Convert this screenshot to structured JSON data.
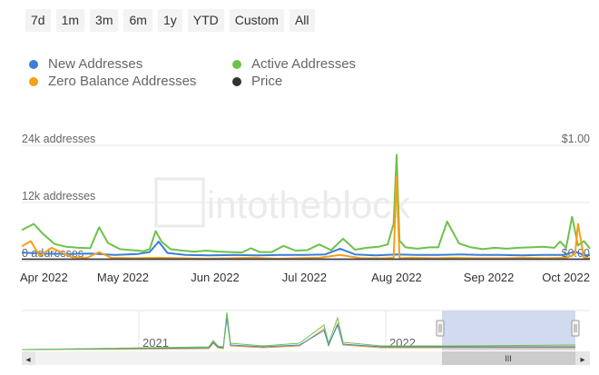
{
  "range_buttons": [
    "7d",
    "1m",
    "3m",
    "6m",
    "1y",
    "YTD",
    "Custom",
    "All"
  ],
  "colors": {
    "new": "#3a7fd5",
    "active": "#6cc24a",
    "zero": "#f5a01a",
    "price": "#333333",
    "grid": "#e6e6e6",
    "navigator_mask": "#c9d3ec"
  },
  "legend": {
    "new": "New Addresses",
    "active": "Active Addresses",
    "zero": "Zero Balance Addresses",
    "price": "Price"
  },
  "watermark": "intotheblock",
  "chart_data": {
    "type": "line",
    "x_ticks": [
      "Apr 2022",
      "May 2022",
      "Jun 2022",
      "Jul 2022",
      "Aug 2022",
      "Sep 2022",
      "Oct 2022"
    ],
    "y_left_labels": [
      "24k addresses",
      "12k addresses",
      "0 addresses"
    ],
    "y_right_labels": [
      "$1.00",
      "$0.00"
    ],
    "ylim": [
      0,
      24000
    ],
    "y_right_lim": [
      0,
      1
    ],
    "x_range": [
      "2022-03-28",
      "2022-10-05"
    ],
    "series": [
      {
        "name": "Active Addresses",
        "color_key": "active",
        "x": [
          "2022-03-28",
          "2022-04-01",
          "2022-04-04",
          "2022-04-08",
          "2022-04-12",
          "2022-04-16",
          "2022-04-20",
          "2022-04-23",
          "2022-04-26",
          "2022-04-30",
          "2022-05-04",
          "2022-05-08",
          "2022-05-10",
          "2022-05-12",
          "2022-05-14",
          "2022-05-17",
          "2022-05-21",
          "2022-05-25",
          "2022-05-29",
          "2022-06-02",
          "2022-06-06",
          "2022-06-10",
          "2022-06-13",
          "2022-06-16",
          "2022-06-20",
          "2022-06-24",
          "2022-06-28",
          "2022-07-02",
          "2022-07-06",
          "2022-07-10",
          "2022-07-14",
          "2022-07-18",
          "2022-07-22",
          "2022-07-26",
          "2022-07-29",
          "2022-07-31",
          "2022-08-01",
          "2022-08-02",
          "2022-08-04",
          "2022-08-08",
          "2022-08-12",
          "2022-08-15",
          "2022-08-18",
          "2022-08-22",
          "2022-08-26",
          "2022-08-30",
          "2022-09-03",
          "2022-09-07",
          "2022-09-11",
          "2022-09-15",
          "2022-09-19",
          "2022-09-23",
          "2022-09-25",
          "2022-09-27",
          "2022-09-29",
          "2022-10-01",
          "2022-10-03",
          "2022-10-05"
        ],
        "y": [
          6200,
          7500,
          5500,
          3300,
          2700,
          2500,
          2400,
          6800,
          3500,
          2200,
          2000,
          1800,
          2200,
          6000,
          3800,
          2200,
          1900,
          1700,
          1900,
          1700,
          1600,
          1500,
          2400,
          1600,
          1600,
          2900,
          1900,
          2000,
          3200,
          2000,
          4400,
          2100,
          2500,
          2700,
          3200,
          7500,
          22000,
          4000,
          2600,
          2300,
          2600,
          2600,
          8000,
          3400,
          2600,
          2200,
          2500,
          2300,
          2500,
          2600,
          2700,
          2500,
          3800,
          2500,
          9000,
          3000,
          3900,
          2300
        ]
      },
      {
        "name": "New Addresses",
        "color_key": "new",
        "x": [
          "2022-03-28",
          "2022-04-04",
          "2022-04-12",
          "2022-04-20",
          "2022-04-28",
          "2022-05-06",
          "2022-05-10",
          "2022-05-13",
          "2022-05-16",
          "2022-05-22",
          "2022-05-30",
          "2022-06-07",
          "2022-06-15",
          "2022-06-23",
          "2022-07-01",
          "2022-07-08",
          "2022-07-13",
          "2022-07-18",
          "2022-07-25",
          "2022-08-01",
          "2022-08-08",
          "2022-08-15",
          "2022-08-22",
          "2022-08-29",
          "2022-09-05",
          "2022-09-12",
          "2022-09-19",
          "2022-09-26",
          "2022-09-30",
          "2022-10-03",
          "2022-10-05"
        ],
        "y": [
          1500,
          1300,
          1200,
          1300,
          1000,
          1200,
          1600,
          3800,
          1400,
          1000,
          900,
          1000,
          900,
          1000,
          1000,
          1100,
          2300,
          1100,
          900,
          1100,
          1000,
          1000,
          1100,
          1000,
          1000,
          900,
          1000,
          1000,
          1700,
          1000,
          900
        ]
      },
      {
        "name": "Zero Balance Addresses",
        "color_key": "zero",
        "x": [
          "2022-03-28",
          "2022-03-31",
          "2022-04-03",
          "2022-04-07",
          "2022-04-14",
          "2022-04-19",
          "2022-04-23",
          "2022-04-27",
          "2022-05-05",
          "2022-05-13",
          "2022-05-21",
          "2022-05-29",
          "2022-06-06",
          "2022-06-14",
          "2022-06-22",
          "2022-06-28",
          "2022-07-06",
          "2022-07-13",
          "2022-07-20",
          "2022-07-28",
          "2022-07-31",
          "2022-08-01",
          "2022-08-02",
          "2022-08-06",
          "2022-08-14",
          "2022-08-20",
          "2022-08-28",
          "2022-09-06",
          "2022-09-13",
          "2022-09-20",
          "2022-09-27",
          "2022-09-30",
          "2022-10-01",
          "2022-10-03",
          "2022-10-05"
        ],
        "y": [
          2800,
          3900,
          800,
          2500,
          500,
          400,
          1600,
          400,
          300,
          400,
          300,
          200,
          300,
          400,
          200,
          300,
          400,
          1000,
          300,
          300,
          400,
          17500,
          300,
          400,
          300,
          400,
          300,
          300,
          400,
          300,
          400,
          1100,
          7500,
          400,
          300
        ]
      },
      {
        "name": "Price",
        "color_key": "price",
        "axis": "right",
        "x": [
          "2022-03-28",
          "2022-10-05"
        ],
        "y": [
          0.005,
          0.005
        ]
      }
    ]
  },
  "navigator": {
    "year_labels": [
      "2021",
      "2022"
    ],
    "handle_glyph": "III",
    "left_arrow": "◂",
    "right_arrow": "▸"
  }
}
